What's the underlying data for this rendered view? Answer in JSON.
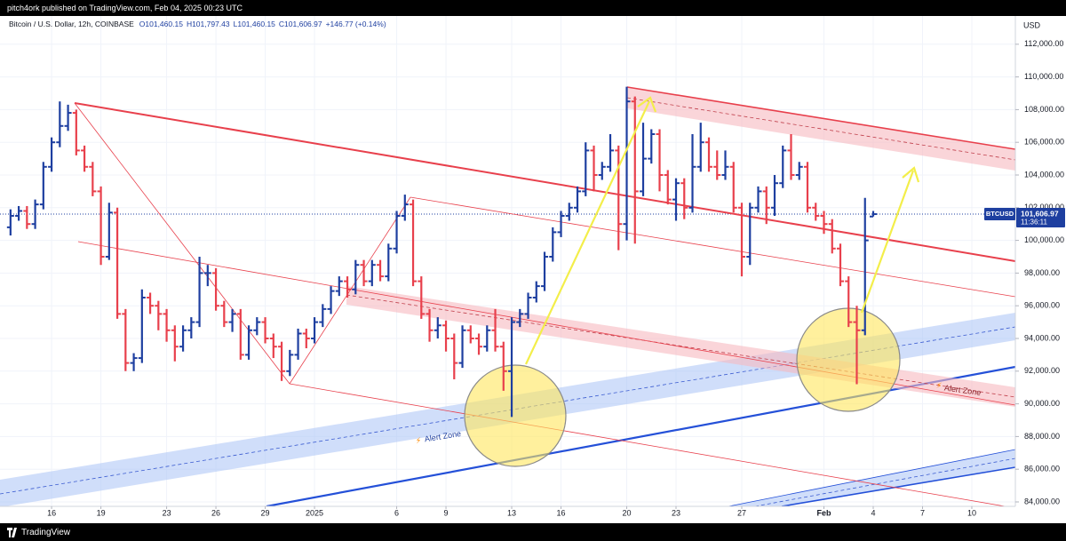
{
  "header": {
    "text": "pitch4ork published on TradingView.com, Feb 04, 2025 00:23 UTC"
  },
  "chart_data": {
    "type": "ohlc",
    "symbol": "Bitcoin / U.S. Dollar, 12h, COINBASE",
    "ohlc_labels": [
      "O101,460.15",
      "H101,797.43",
      "L101,460.15",
      "C101,606.97"
    ],
    "change": "+146.77 (+0.14%)",
    "currency": "USD",
    "price_tag": {
      "symbol": "BTCUSD",
      "price": "101,606.97",
      "countdown": "11:36:11"
    },
    "annotations": [
      "Alert Zone",
      "Alert Zone"
    ],
    "up_color": "#1e3fa0",
    "down_color": "#e8404c",
    "x": [
      -2.5,
      -2,
      -1.5,
      -1,
      -0.5,
      0,
      0.5,
      1,
      1.5,
      2,
      2.5,
      3,
      3.5,
      4,
      4.5,
      5,
      5.5,
      6,
      6.5,
      7,
      7.5,
      8,
      8.5,
      9,
      9.5,
      10,
      10.5,
      11,
      11.5,
      12,
      12.5,
      13,
      13.5,
      14,
      14.5,
      15,
      15.5,
      16,
      16.5,
      17,
      17.5,
      18,
      18.5,
      19,
      19.5,
      20,
      20.5,
      21,
      21.5,
      22,
      22.5,
      23,
      23.5,
      24,
      24.5,
      25,
      25.5,
      26,
      26.5,
      27,
      27.5,
      28,
      28.5,
      29,
      29.5,
      30,
      30.5,
      31,
      31.5,
      32,
      32.5,
      33,
      33.5,
      34,
      34.5,
      35,
      35.5,
      36,
      36.5,
      37,
      37.5,
      38,
      38.5,
      39,
      39.5,
      40,
      40.5,
      41,
      41.5,
      42,
      42.5,
      43,
      43.5,
      44,
      44.5,
      45,
      45.5,
      46,
      46.5,
      47,
      47.5,
      48,
      48.5,
      49,
      49.5,
      50
    ],
    "open": [
      100800,
      101500,
      101800,
      101000,
      102200,
      104500,
      106000,
      107000,
      107800,
      105500,
      104500,
      103000,
      99000,
      101700,
      95500,
      92500,
      92800,
      96500,
      96000,
      95500,
      94500,
      93500,
      94500,
      95000,
      98000,
      98000,
      96000,
      95000,
      95500,
      93000,
      94500,
      95000,
      94000,
      93500,
      92000,
      93000,
      94300,
      94000,
      95000,
      95800,
      96900,
      97500,
      97000,
      98500,
      97500,
      98500,
      97800,
      99500,
      101500,
      102200,
      97500,
      95500,
      94500,
      94800,
      94000,
      92500,
      94500,
      94000,
      93500,
      94500,
      93500,
      92000,
      95000,
      95500,
      96500,
      97200,
      99000,
      100500,
      101500,
      102000,
      103000,
      105500,
      104000,
      104500,
      105500,
      101000,
      108500,
      103000,
      105000,
      106500,
      104000,
      102500,
      103500,
      102000,
      104500,
      106000,
      104500,
      104000,
      104500,
      102000,
      99000,
      102000,
      103000,
      102000,
      103500,
      105500,
      104000,
      104500,
      102000,
      101500,
      101000,
      99500,
      97500,
      95000,
      94500,
      101460.15
    ],
    "high": [
      101900,
      102100,
      102100,
      102500,
      104800,
      106300,
      108500,
      108300,
      108000,
      105800,
      104800,
      103300,
      102300,
      102000,
      95800,
      93100,
      97000,
      96800,
      96300,
      95800,
      94800,
      94800,
      95300,
      99000,
      98500,
      98300,
      96300,
      95800,
      95800,
      94800,
      95300,
      95300,
      94300,
      93800,
      93300,
      94600,
      94600,
      95300,
      96100,
      97200,
      97800,
      97800,
      98800,
      98800,
      98800,
      98800,
      99800,
      101800,
      102800,
      102500,
      97800,
      95800,
      95300,
      95100,
      94300,
      94800,
      94800,
      94300,
      94800,
      95800,
      93800,
      95300,
      95800,
      96800,
      97500,
      99300,
      100800,
      101800,
      102300,
      103300,
      106000,
      105800,
      104800,
      106500,
      105800,
      109400,
      108800,
      107200,
      106800,
      106800,
      104300,
      103800,
      103800,
      106500,
      107200,
      106300,
      105500,
      105500,
      104800,
      102300,
      102300,
      103300,
      103300,
      104000,
      105800,
      106500,
      104800,
      104800,
      102300,
      101800,
      101300,
      99800,
      97800,
      96000,
      102600,
      101797.43
    ],
    "low": [
      100300,
      101200,
      100700,
      100700,
      101900,
      104200,
      105700,
      106700,
      105200,
      104200,
      102700,
      98500,
      98800,
      95200,
      92000,
      92000,
      92500,
      95500,
      94500,
      93800,
      92600,
      93200,
      94000,
      94700,
      97200,
      95700,
      94700,
      94400,
      92700,
      92700,
      94200,
      93700,
      92800,
      91400,
      91700,
      92700,
      93400,
      93700,
      94700,
      95500,
      96600,
      96500,
      96700,
      97200,
      97200,
      97500,
      97500,
      99200,
      101200,
      97200,
      95200,
      93800,
      94000,
      93200,
      91500,
      92200,
      93700,
      93000,
      93200,
      93200,
      90800,
      89200,
      94700,
      95200,
      96200,
      96900,
      98700,
      100200,
      101200,
      101700,
      102700,
      103000,
      103700,
      104200,
      99400,
      100000,
      99800,
      102700,
      104700,
      103000,
      102200,
      101200,
      101300,
      101700,
      104200,
      104200,
      103700,
      103700,
      101700,
      97800,
      98500,
      101700,
      101000,
      101500,
      103200,
      103700,
      103700,
      101700,
      101200,
      100400,
      99200,
      97200,
      94700,
      91200,
      94200,
      101460.15
    ],
    "close": [
      101500,
      101800,
      101000,
      102200,
      104500,
      106000,
      107000,
      107800,
      105500,
      104500,
      103000,
      99000,
      101700,
      95500,
      92500,
      92800,
      96500,
      96000,
      95500,
      94500,
      93500,
      94500,
      95000,
      98000,
      98000,
      96000,
      95000,
      95500,
      93000,
      94500,
      95000,
      94000,
      93500,
      92000,
      93000,
      94300,
      94000,
      95000,
      95800,
      96900,
      97500,
      97000,
      98500,
      97500,
      98500,
      97800,
      99500,
      101500,
      102200,
      97500,
      95500,
      94500,
      94800,
      94000,
      92500,
      94500,
      94000,
      93500,
      94500,
      93500,
      92000,
      95000,
      95500,
      96500,
      97200,
      99000,
      100500,
      101500,
      102000,
      103000,
      105500,
      104000,
      104500,
      105500,
      101000,
      108500,
      103000,
      105000,
      106500,
      104000,
      102500,
      103500,
      102000,
      104500,
      106000,
      104500,
      104000,
      104500,
      102000,
      99000,
      102000,
      103000,
      102000,
      103500,
      105500,
      104000,
      104500,
      102000,
      101500,
      101000,
      99500,
      97500,
      95000,
      94500,
      100000,
      101606.97
    ],
    "xlim": [
      -3.14,
      58.65
    ],
    "ylim": [
      83728,
      113728
    ],
    "xticks": [
      {
        "value": 0,
        "label": "16"
      },
      {
        "value": 3,
        "label": "19"
      },
      {
        "value": 7,
        "label": "23"
      },
      {
        "value": 10,
        "label": "26"
      },
      {
        "value": 13,
        "label": "29"
      },
      {
        "value": 16,
        "label": "2025"
      },
      {
        "value": 21,
        "label": "6"
      },
      {
        "value": 24,
        "label": "9"
      },
      {
        "value": 28,
        "label": "13"
      },
      {
        "value": 31,
        "label": "16"
      },
      {
        "value": 35,
        "label": "20"
      },
      {
        "value": 38,
        "label": "23"
      },
      {
        "value": 42,
        "label": "27"
      },
      {
        "value": 47,
        "label": "Feb"
      },
      {
        "value": 50,
        "label": "4"
      },
      {
        "value": 53,
        "label": "7"
      },
      {
        "value": 56,
        "label": "10"
      }
    ],
    "yticks": [
      {
        "value": 84000,
        "label": "84,000.00"
      },
      {
        "value": 86000,
        "label": "86,000.00"
      },
      {
        "value": 88000,
        "label": "88,000.00"
      },
      {
        "value": 90000,
        "label": "90,000.00"
      },
      {
        "value": 92000,
        "label": "92,000.00"
      },
      {
        "value": 94000,
        "label": "94,000.00"
      },
      {
        "value": 96000,
        "label": "96,000.00"
      },
      {
        "value": 98000,
        "label": "98,000.00"
      },
      {
        "value": 100000,
        "label": "100,000.00"
      },
      {
        "value": 102000,
        "label": "102,000.00"
      },
      {
        "value": 104000,
        "label": "104,000.00"
      },
      {
        "value": 106000,
        "label": "106,000.00"
      },
      {
        "value": 108000,
        "label": "108,000.00"
      },
      {
        "value": 110000,
        "label": "110,000.00"
      },
      {
        "value": 112000,
        "label": "112,000.00"
      }
    ]
  },
  "footer": {
    "brand": "TradingView"
  }
}
